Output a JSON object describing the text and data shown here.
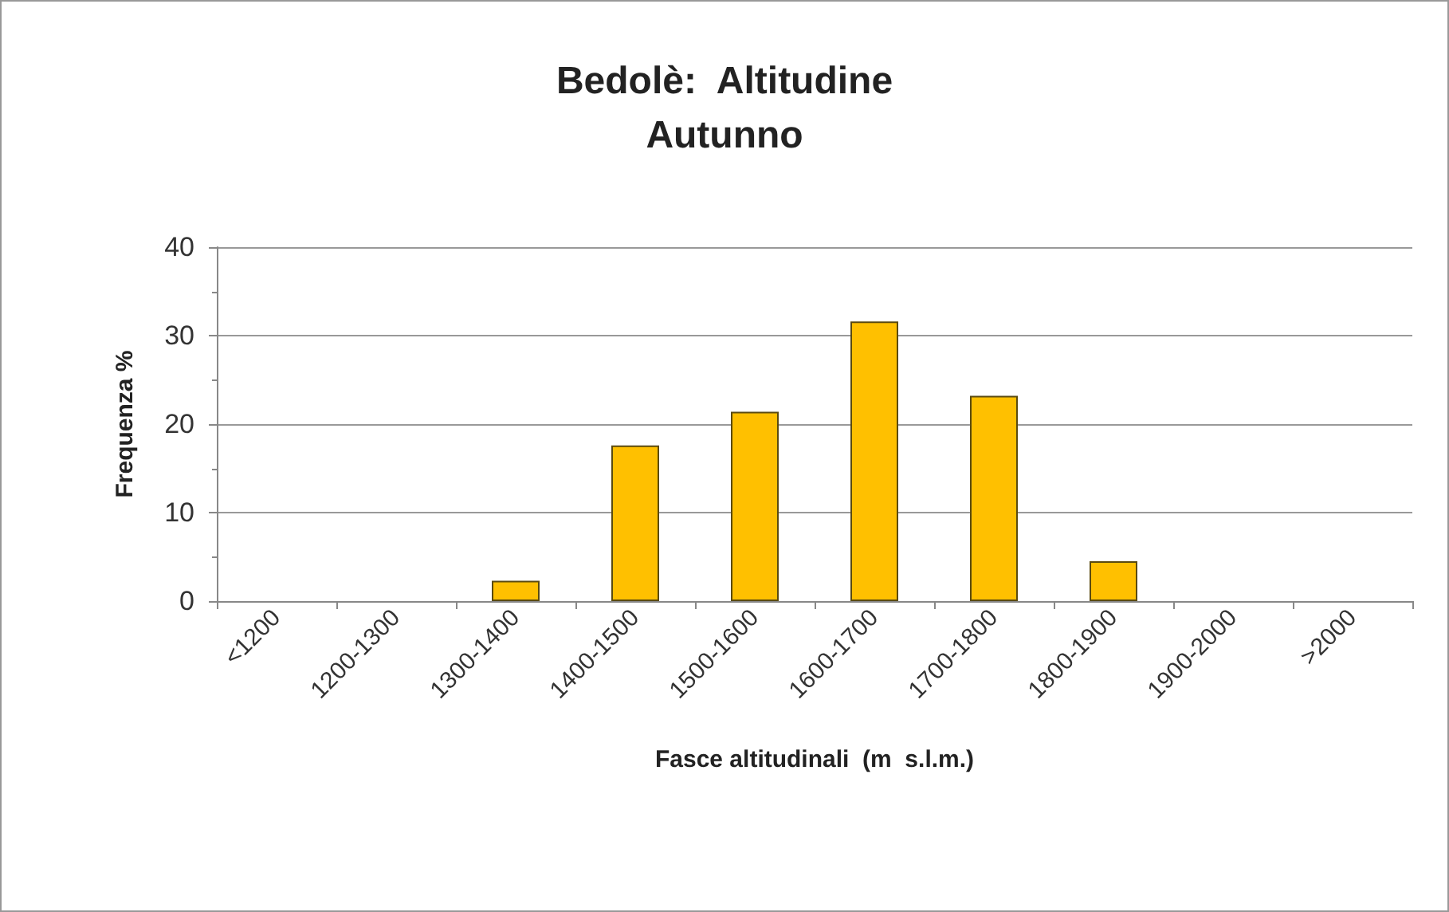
{
  "chart_data": {
    "type": "bar",
    "title": "Bedolè:  Altitudine\nAutunno",
    "xlabel": "Fasce altitudinali  (m  s.l.m.)",
    "ylabel": "Frequenza %",
    "categories": [
      "<1200",
      "1200-1300",
      "1300-1400",
      "1400-1500",
      "1500-1600",
      "1600-1700",
      "1700-1800",
      "1800-1900",
      "1900-2000",
      ">2000"
    ],
    "values": [
      0,
      0,
      2.3,
      17.6,
      21.4,
      31.6,
      23.2,
      4.5,
      0,
      0
    ],
    "color": "#ffc000",
    "ylim": [
      0,
      40
    ],
    "yticks": [
      0,
      10,
      20,
      30,
      40
    ],
    "grid": "y"
  }
}
